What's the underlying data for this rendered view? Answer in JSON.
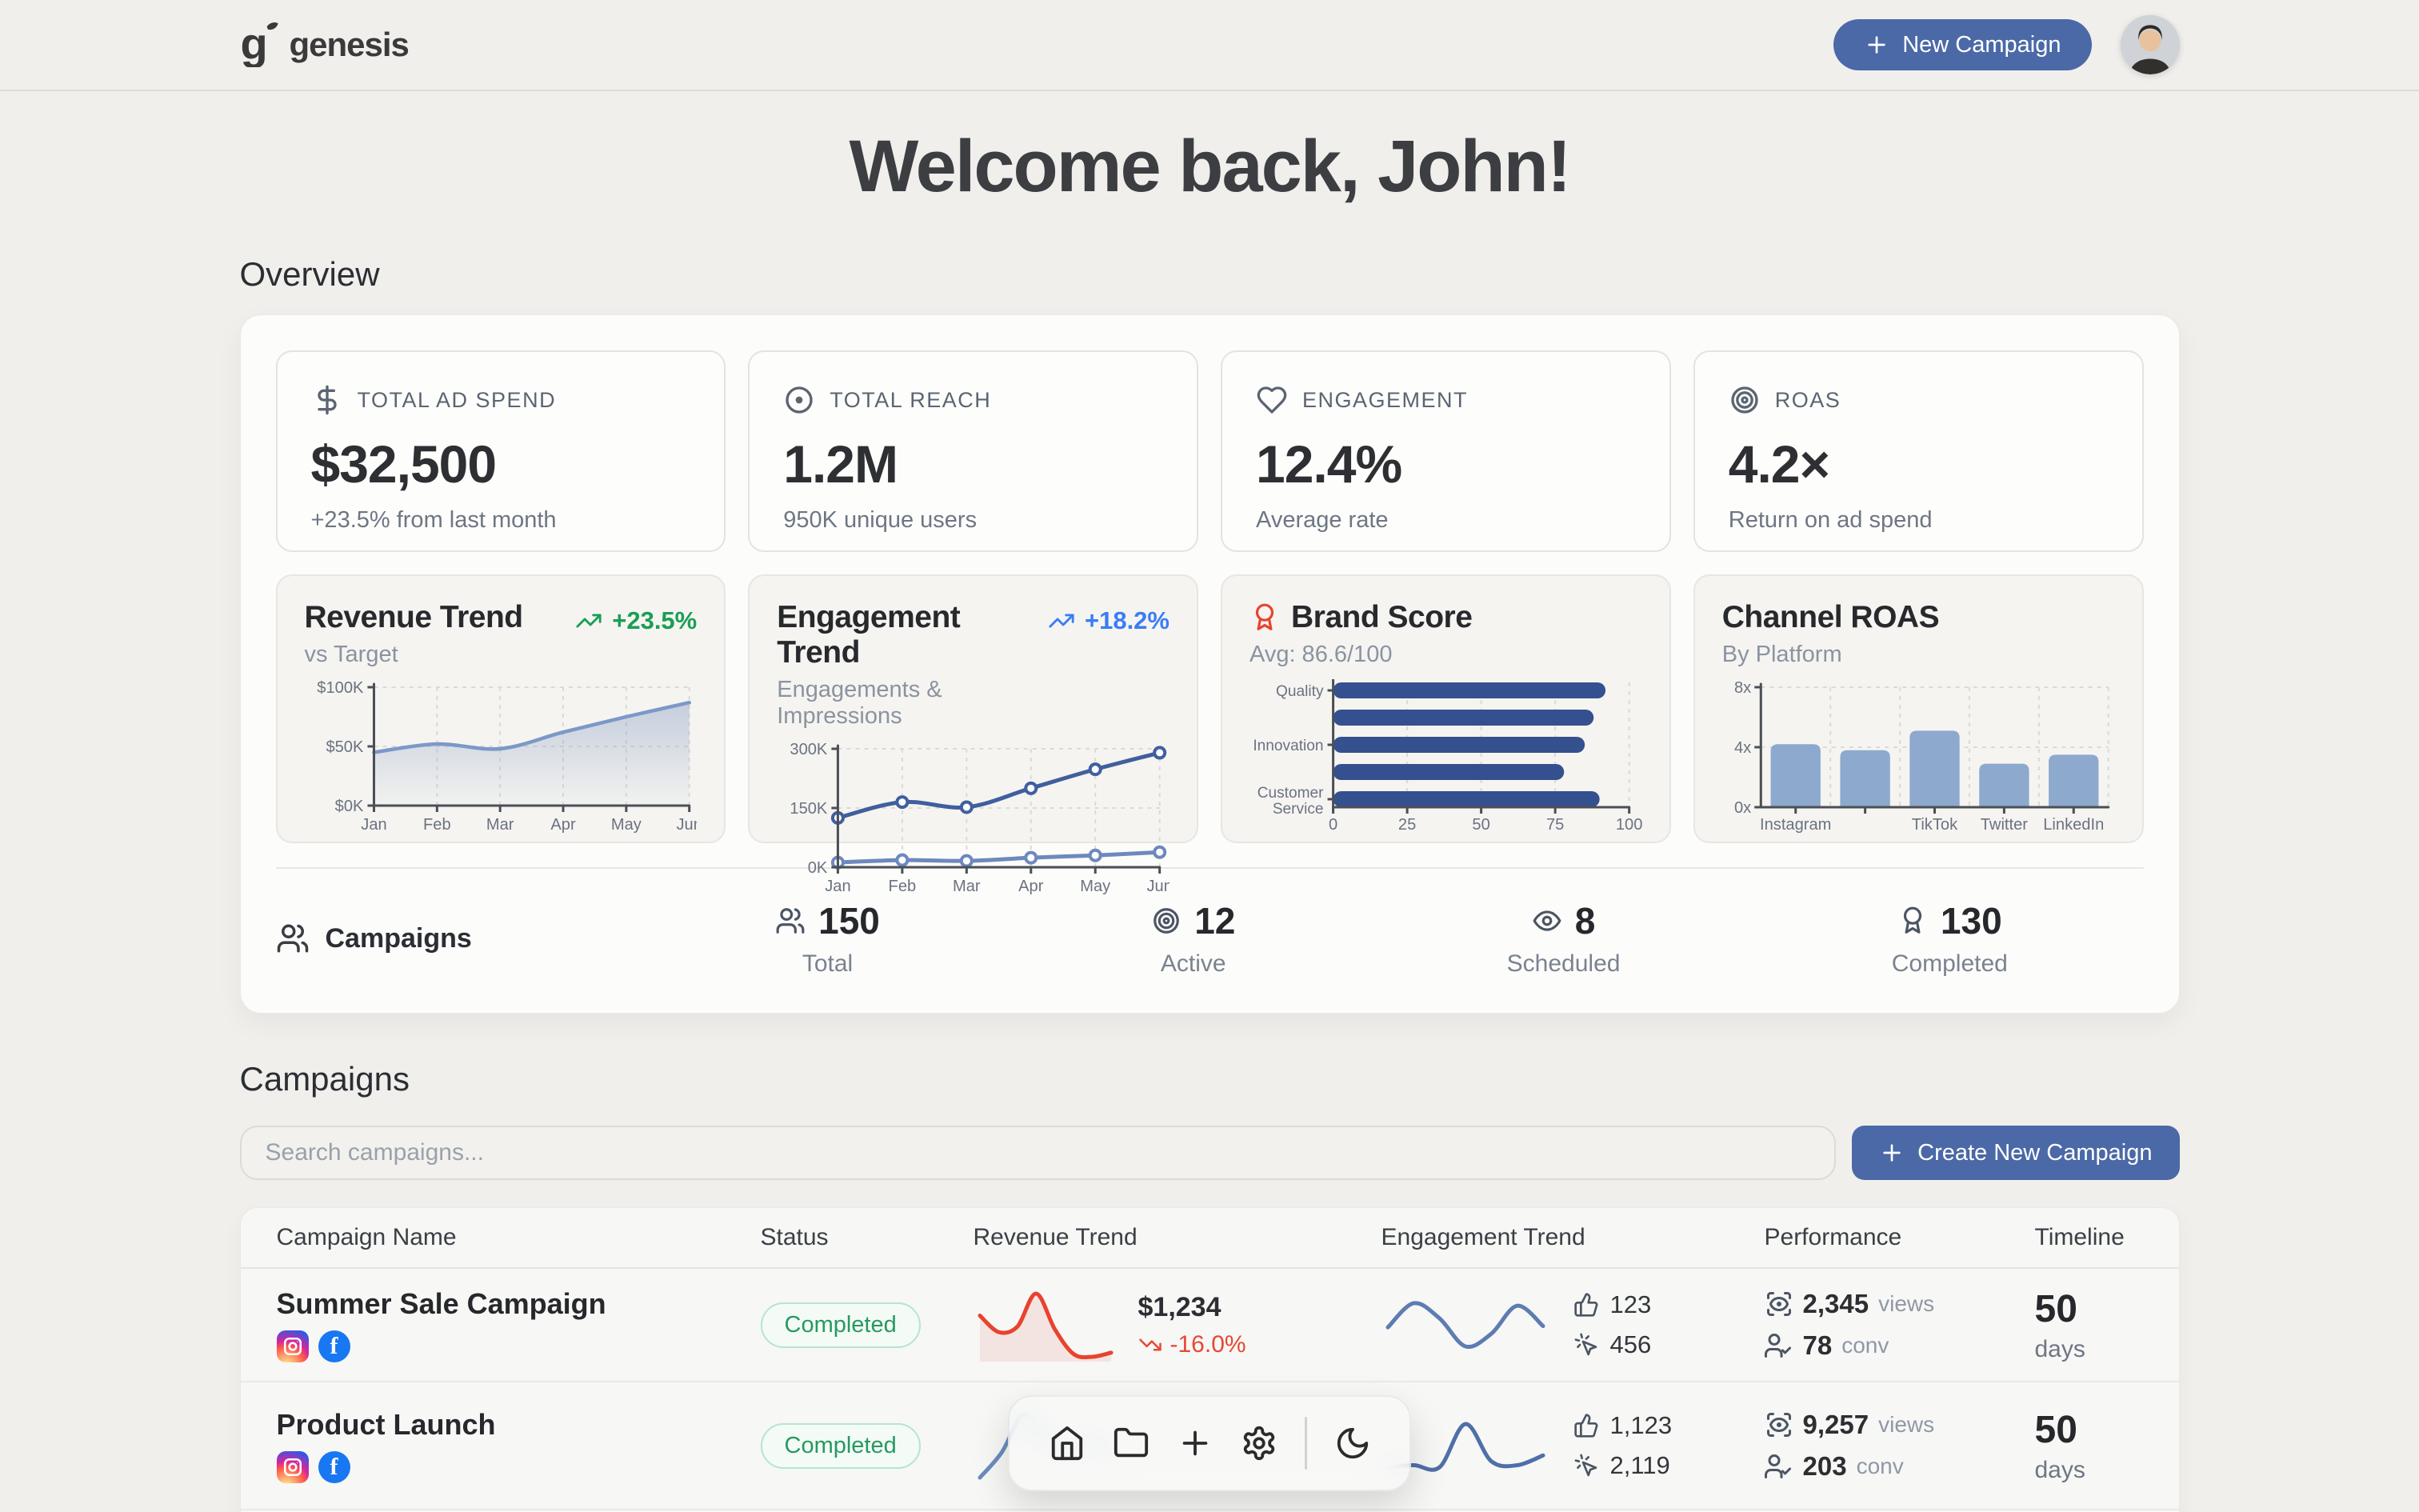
{
  "colors": {
    "accent_blue": "#4b69a7",
    "positive_green": "#1a9e55",
    "info_blue": "#3a7df5",
    "negative_red": "#e64834",
    "navy_bar": "#35508f",
    "light_blue_bar": "#8da9ce",
    "page_background": "#f0efec"
  },
  "header": {
    "brand": "genesis",
    "new_campaign_label": "New Campaign"
  },
  "welcome": {
    "title": "Welcome back, John!"
  },
  "overview": {
    "heading": "Overview",
    "stats": [
      {
        "icon": "dollar-sign-icon",
        "label": "TOTAL AD SPEND",
        "value": "$32,500",
        "sub": "+23.5% from last month"
      },
      {
        "icon": "circle-dot-icon",
        "label": "TOTAL REACH",
        "value": "1.2M",
        "sub": "950K unique users"
      },
      {
        "icon": "heart-icon",
        "label": "ENGAGEMENT",
        "value": "12.4%",
        "sub": "Average rate"
      },
      {
        "icon": "target-icon",
        "label": "ROAS",
        "value": "4.2×",
        "sub": "Return on ad spend"
      }
    ]
  },
  "chart_data": [
    {
      "id": "revenue_trend",
      "type": "area",
      "title": "Revenue Trend",
      "subtitle": "vs Target",
      "badge": "+23.5%",
      "x": [
        "Jan",
        "Feb",
        "Mar",
        "Apr",
        "May",
        "Jun"
      ],
      "values": [
        45,
        52,
        48,
        62,
        75,
        87
      ],
      "unit": "$K",
      "ylim": [
        0,
        100
      ],
      "grid": true,
      "yticks": [
        {
          "v": 0,
          "label": "$0K"
        },
        {
          "v": 50,
          "label": "$50K"
        },
        {
          "v": 100,
          "label": "$100K"
        }
      ],
      "color": "#7b98c8",
      "fill_from": "rgba(139,160,196,0.45)",
      "fill_to": "rgba(139,160,196,0.03)"
    },
    {
      "id": "engagement_trend",
      "type": "line",
      "title": "Engagement Trend",
      "subtitle": "Engagements & Impressions",
      "badge": "+18.2%",
      "x": [
        "Jan",
        "Feb",
        "Mar",
        "Apr",
        "May",
        "Jun"
      ],
      "ylim": [
        0,
        300
      ],
      "grid": true,
      "yticks": [
        {
          "v": 0,
          "label": "0K"
        },
        {
          "v": 150,
          "label": "150K"
        },
        {
          "v": 300,
          "label": "300K"
        }
      ],
      "series": [
        {
          "name": "Impressions",
          "color": "#3f5f9e",
          "values": [
            125,
            165,
            152,
            200,
            248,
            290
          ]
        },
        {
          "name": "Engagements",
          "color": "#6d89bd",
          "values": [
            12,
            18,
            16,
            24,
            30,
            38
          ]
        }
      ]
    },
    {
      "id": "brand_score",
      "type": "hbar",
      "title": "Brand Score",
      "subtitle": "Avg: 86.6/100",
      "categories": [
        "Quality",
        "",
        "Innovation",
        "",
        "Customer Service"
      ],
      "values": [
        92,
        88,
        85,
        78,
        90
      ],
      "xlim": [
        0,
        100
      ],
      "xticks": [
        0,
        25,
        50,
        75,
        100
      ],
      "grid": true,
      "color": "#35508f"
    },
    {
      "id": "channel_roas",
      "type": "vbar",
      "title": "Channel ROAS",
      "subtitle": "By Platform",
      "categories": [
        "Instagram",
        "",
        "TikTok",
        "Twitter",
        "LinkedIn"
      ],
      "values": [
        4.2,
        3.8,
        5.1,
        2.9,
        3.5
      ],
      "ylim": [
        0,
        8
      ],
      "grid": true,
      "yticks": [
        {
          "v": 0,
          "label": "0x"
        },
        {
          "v": 4,
          "label": "4x"
        },
        {
          "v": 8,
          "label": "8x"
        }
      ],
      "color": "#8da9ce"
    },
    {
      "id": "row0_revenue_spark",
      "type": "sparkline",
      "color": "#e8432f",
      "fill": "rgba(230,72,52,0.10)",
      "values": [
        58,
        46,
        50,
        74,
        48,
        30,
        28,
        31
      ]
    },
    {
      "id": "row0_engagement_spark",
      "type": "sparkline",
      "color": "#5d7cb2",
      "values": [
        45,
        64,
        52,
        30,
        40,
        62,
        46
      ]
    },
    {
      "id": "row1_revenue_spark",
      "type": "sparkline",
      "color": "#6b8cbf",
      "values": [
        22,
        38,
        62,
        48,
        40,
        44,
        38
      ]
    },
    {
      "id": "row1_engagement_spark",
      "type": "sparkline",
      "color": "#4f6fa8",
      "values": [
        30,
        31,
        30,
        52,
        33,
        31,
        36
      ]
    }
  ],
  "summary": {
    "label": "Campaigns",
    "items": [
      {
        "icon": "users-icon",
        "value": "150",
        "label": "Total"
      },
      {
        "icon": "target-icon",
        "value": "12",
        "label": "Active"
      },
      {
        "icon": "eye-icon",
        "value": "8",
        "label": "Scheduled"
      },
      {
        "icon": "award-icon",
        "value": "130",
        "label": "Completed"
      }
    ]
  },
  "campaigns": {
    "heading": "Campaigns",
    "search_placeholder": "Search campaigns...",
    "create_label": "Create New Campaign"
  },
  "table": {
    "columns": [
      "Campaign Name",
      "Status",
      "Revenue Trend",
      "Engagement Trend",
      "Performance",
      "Timeline"
    ],
    "rows": [
      {
        "name": "Summer Sale Campaign",
        "platforms": [
          "instagram",
          "facebook"
        ],
        "status": "Completed",
        "revenue": {
          "value": "$1,234",
          "change": "-16.0%"
        },
        "engagement": {
          "likes": "123",
          "clicks": "456"
        },
        "performance": {
          "views": "2,345",
          "views_unit": "views",
          "conv": "78",
          "conv_unit": "conv"
        },
        "timeline": {
          "value": "50",
          "unit": "days"
        }
      },
      {
        "name": "Product Launch",
        "platforms": [
          "instagram",
          "facebook"
        ],
        "status": "Completed",
        "engagement": {
          "likes": "1,123",
          "clicks": "2,119"
        },
        "performance": {
          "views": "9,257",
          "views_unit": "views",
          "conv": "203",
          "conv_unit": "conv"
        },
        "timeline": {
          "value": "50",
          "unit": "days"
        }
      }
    ]
  },
  "dock": {
    "icons": [
      "home",
      "folder",
      "plus",
      "settings",
      "moon"
    ]
  }
}
